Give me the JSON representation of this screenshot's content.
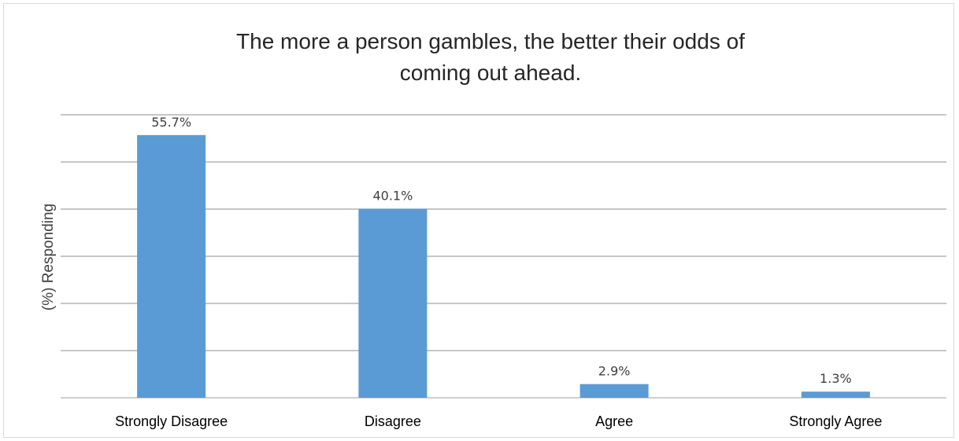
{
  "chart_data": {
    "type": "bar",
    "title_lines": [
      "The more a person gambles, the better their odds of",
      "coming out ahead."
    ],
    "ylabel": "(%) Responding",
    "xlabel": "",
    "categories": [
      "Strongly Disagree",
      "Disagree",
      "Agree",
      "Strongly Agree"
    ],
    "values": [
      55.7,
      40.1,
      2.9,
      1.3
    ],
    "data_labels": [
      "55.7%",
      "40.1%",
      "2.9%",
      "1.3%"
    ],
    "ylim": [
      0,
      60
    ],
    "grid": true,
    "legend": "none",
    "bar_color": "#5b9bd5"
  }
}
